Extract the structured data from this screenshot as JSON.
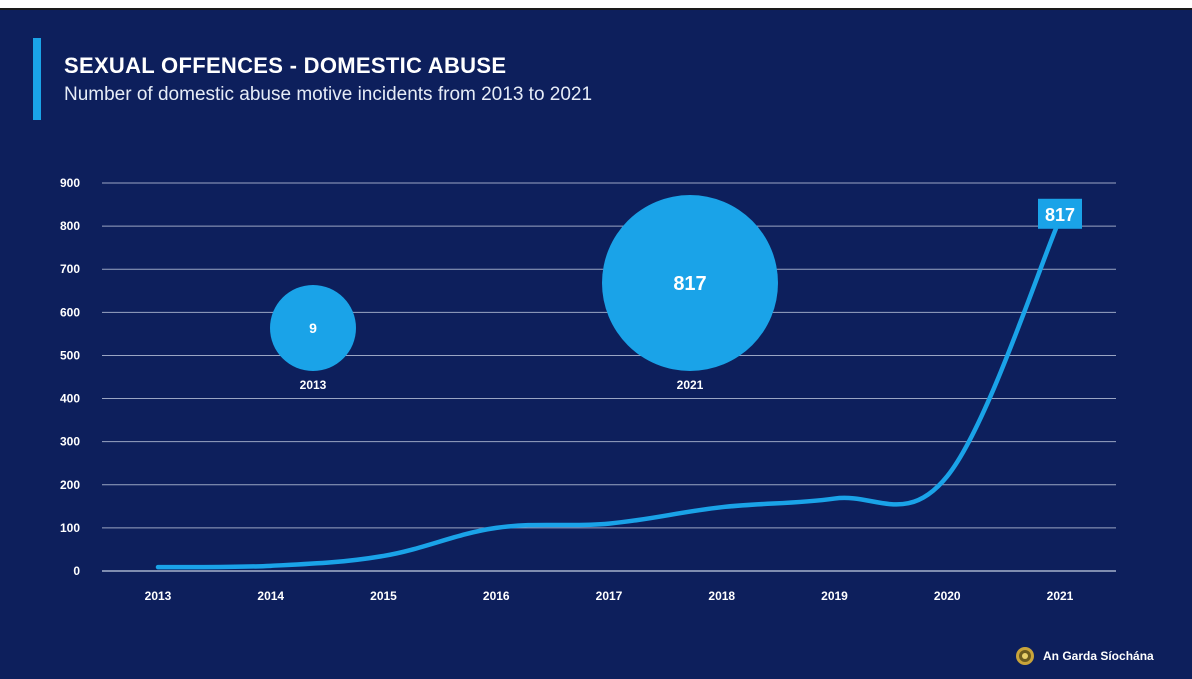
{
  "title": "SEXUAL OFFENCES - DOMESTIC ABUSE",
  "subtitle": "Number of domestic abuse motive incidents from 2013 to 2021",
  "footer": {
    "org": "An Garda Síochána",
    "logo_icon": "garda-crest-icon"
  },
  "colors": {
    "background": "#0d1f5c",
    "accent": "#1aa3e8",
    "line": "#1aa3e8",
    "grid": "#c9d2e6"
  },
  "chart_data": {
    "type": "line",
    "title": "SEXUAL OFFENCES - DOMESTIC ABUSE",
    "subtitle": "Number of domestic abuse motive incidents from 2013 to 2021",
    "categories": [
      "2013",
      "2014",
      "2015",
      "2016",
      "2017",
      "2018",
      "2019",
      "2020",
      "2021"
    ],
    "series": [
      {
        "values": [
          9,
          12,
          35,
          100,
          110,
          148,
          168,
          220,
          817
        ]
      }
    ],
    "ylim": [
      0,
      900
    ],
    "yticks": [
      0,
      100,
      200,
      300,
      400,
      500,
      600,
      700,
      800,
      900
    ],
    "grid": true,
    "end_label": "817",
    "bubbles": [
      {
        "label": "9",
        "year": "2013",
        "value": 9
      },
      {
        "label": "817",
        "year": "2021",
        "value": 817
      }
    ]
  }
}
